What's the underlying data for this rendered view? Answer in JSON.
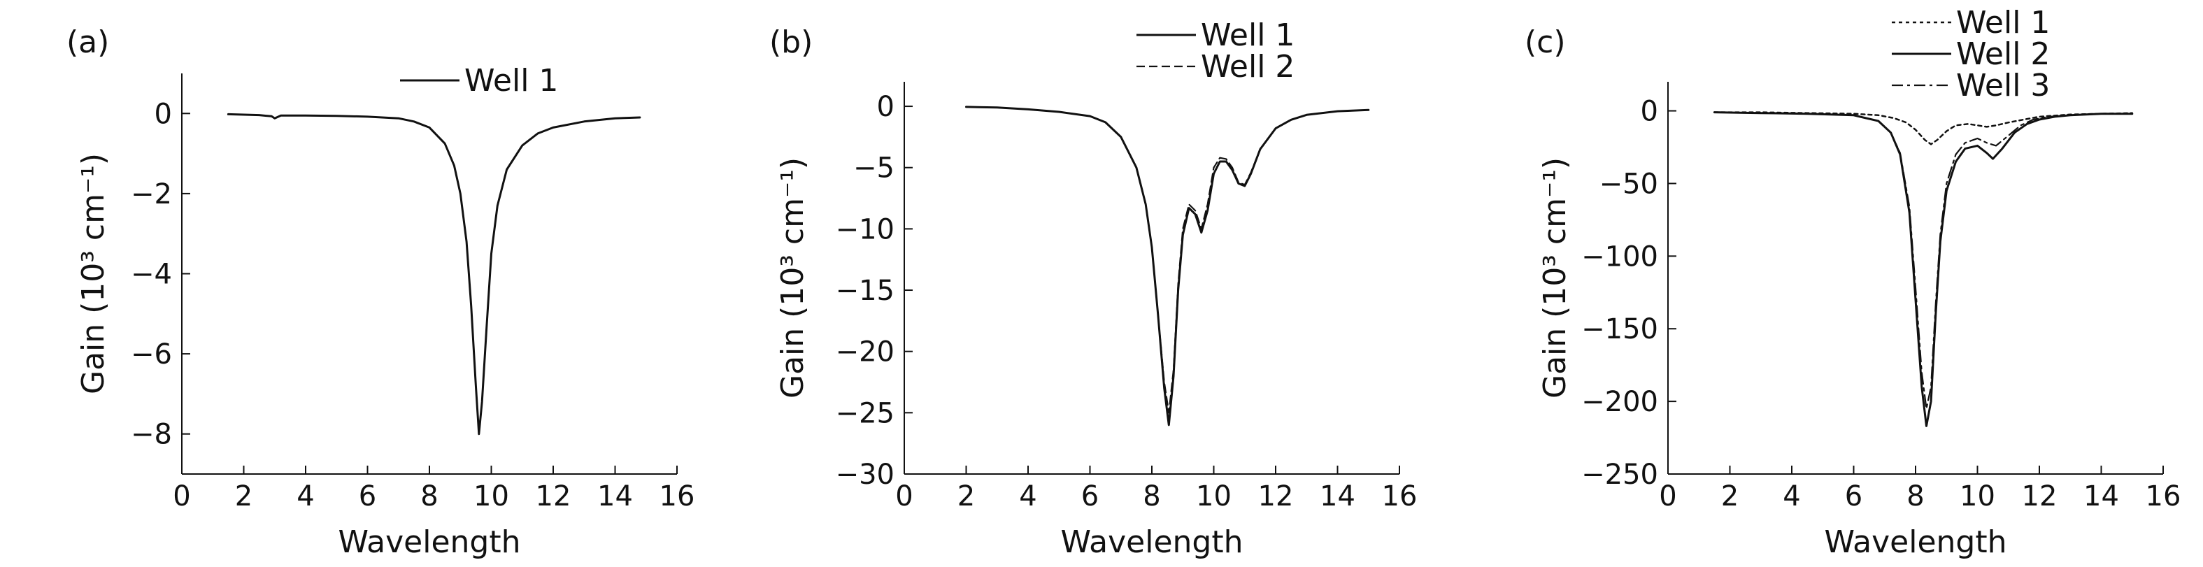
{
  "chart_data": [
    {
      "type": "line",
      "panel_label": "(a)",
      "xlabel": "Wavelength",
      "ylabel": "Gain (10³ cm⁻¹)",
      "xlim": [
        0,
        16
      ],
      "ylim": [
        -9,
        1
      ],
      "xticks": [
        0,
        2,
        4,
        6,
        8,
        10,
        12,
        14,
        16
      ],
      "xtick_labels": [
        "0",
        "2",
        "4",
        "6",
        "8",
        "10",
        "12",
        "14",
        "16"
      ],
      "yticks": [
        0,
        -2,
        -4,
        -6,
        -8
      ],
      "ytick_labels": [
        "0",
        "−2",
        "−4",
        "−6",
        "−8"
      ],
      "legend_position": "top-center",
      "series": [
        {
          "name": "Well 1",
          "dash": "solid",
          "x": [
            1.5,
            2.5,
            2.9,
            3.0,
            3.2,
            4.0,
            5.0,
            6.0,
            7.0,
            7.5,
            8.0,
            8.5,
            8.8,
            9.0,
            9.2,
            9.35,
            9.5,
            9.6,
            9.7,
            9.85,
            10.0,
            10.2,
            10.5,
            11.0,
            11.5,
            12.0,
            13.0,
            14.0,
            14.8
          ],
          "y": [
            -0.02,
            -0.04,
            -0.07,
            -0.12,
            -0.05,
            -0.05,
            -0.06,
            -0.08,
            -0.12,
            -0.2,
            -0.35,
            -0.75,
            -1.3,
            -2.0,
            -3.2,
            -4.8,
            -6.8,
            -8.0,
            -7.2,
            -5.3,
            -3.5,
            -2.3,
            -1.4,
            -0.8,
            -0.5,
            -0.35,
            -0.2,
            -0.12,
            -0.1
          ]
        }
      ]
    },
    {
      "type": "line",
      "panel_label": "(b)",
      "xlabel": "Wavelength",
      "ylabel": "Gain (10³ cm⁻¹)",
      "xlim": [
        0,
        16
      ],
      "ylim": [
        -30,
        2
      ],
      "xticks": [
        0,
        2,
        4,
        6,
        8,
        10,
        12,
        14,
        16
      ],
      "xtick_labels": [
        "0",
        "2",
        "4",
        "6",
        "8",
        "10",
        "12",
        "14",
        "16"
      ],
      "yticks": [
        0,
        -5,
        -10,
        -15,
        -20,
        -25,
        -30
      ],
      "ytick_labels": [
        "0",
        "−5",
        "−10",
        "−15",
        "−20",
        "−25",
        "−30"
      ],
      "legend_position": "top-center",
      "series": [
        {
          "name": "Well 1",
          "dash": "solid",
          "x": [
            2.0,
            3.0,
            4.0,
            5.0,
            6.0,
            6.5,
            7.0,
            7.5,
            7.8,
            8.0,
            8.2,
            8.4,
            8.55,
            8.7,
            8.85,
            9.0,
            9.2,
            9.4,
            9.6,
            9.8,
            10.0,
            10.2,
            10.4,
            10.6,
            10.8,
            11.0,
            11.2,
            11.5,
            12.0,
            12.5,
            13.0,
            14.0,
            15.0
          ],
          "y": [
            -0.05,
            -0.1,
            -0.25,
            -0.45,
            -0.8,
            -1.3,
            -2.5,
            -5.0,
            -8.0,
            -11.5,
            -17.0,
            -23.0,
            -26.0,
            -22.0,
            -15.0,
            -10.5,
            -8.3,
            -8.8,
            -10.3,
            -8.5,
            -5.5,
            -4.5,
            -4.5,
            -5.2,
            -6.3,
            -6.5,
            -5.5,
            -3.5,
            -1.8,
            -1.1,
            -0.7,
            -0.4,
            -0.3
          ]
        },
        {
          "name": "Well 2",
          "dash": "dashed",
          "x": [
            2.0,
            3.0,
            4.0,
            5.0,
            6.0,
            6.5,
            7.0,
            7.5,
            7.8,
            8.0,
            8.2,
            8.4,
            8.55,
            8.7,
            8.85,
            9.0,
            9.2,
            9.4,
            9.6,
            9.8,
            10.0,
            10.2,
            10.4,
            10.6,
            10.8,
            11.0,
            11.2,
            11.5,
            12.0,
            12.5,
            13.0,
            14.0,
            15.0
          ],
          "y": [
            -0.05,
            -0.1,
            -0.25,
            -0.45,
            -0.8,
            -1.3,
            -2.5,
            -5.0,
            -8.0,
            -11.5,
            -17.0,
            -22.5,
            -25.0,
            -21.5,
            -14.5,
            -10.0,
            -8.0,
            -8.5,
            -10.0,
            -8.0,
            -5.0,
            -4.2,
            -4.3,
            -5.0,
            -6.2,
            -6.4,
            -5.4,
            -3.5,
            -1.8,
            -1.1,
            -0.7,
            -0.4,
            -0.3
          ]
        }
      ]
    },
    {
      "type": "line",
      "panel_label": "(c)",
      "xlabel": "Wavelength",
      "ylabel": "Gain (10³ cm⁻¹)",
      "xlim": [
        0,
        16
      ],
      "ylim": [
        -250,
        20
      ],
      "xticks": [
        0,
        2,
        4,
        6,
        8,
        10,
        12,
        14,
        16
      ],
      "xtick_labels": [
        "0",
        "2",
        "4",
        "6",
        "8",
        "10",
        "12",
        "14",
        "16"
      ],
      "yticks": [
        0,
        -50,
        -100,
        -150,
        -200,
        -250
      ],
      "ytick_labels": [
        "0",
        "−50",
        "−100",
        "−150",
        "−200",
        "−250"
      ],
      "legend_position": "top-center",
      "series": [
        {
          "name": "Well 1",
          "dash": "dotted",
          "x": [
            1.5,
            3.0,
            4.5,
            6.0,
            6.8,
            7.3,
            7.7,
            8.0,
            8.3,
            8.5,
            8.7,
            9.0,
            9.3,
            9.7,
            10.0,
            10.3,
            10.6,
            11.0,
            11.5,
            12.0,
            13.0,
            14.0,
            15.0
          ],
          "y": [
            -1,
            -1,
            -1.5,
            -2,
            -3,
            -5,
            -8,
            -13,
            -20,
            -23,
            -20,
            -14,
            -10,
            -9,
            -10,
            -11,
            -10,
            -8,
            -6,
            -4,
            -2.5,
            -2,
            -1.5
          ]
        },
        {
          "name": "Well 2",
          "dash": "solid",
          "x": [
            1.5,
            3.0,
            4.5,
            6.0,
            6.8,
            7.2,
            7.5,
            7.8,
            8.0,
            8.2,
            8.35,
            8.5,
            8.65,
            8.8,
            9.0,
            9.3,
            9.6,
            10.0,
            10.3,
            10.5,
            10.8,
            11.2,
            11.6,
            12.0,
            12.5,
            13.0,
            14.0,
            15.0
          ],
          "y": [
            -1,
            -1.5,
            -2,
            -3,
            -7,
            -15,
            -30,
            -70,
            -130,
            -190,
            -217,
            -200,
            -140,
            -90,
            -55,
            -35,
            -26,
            -24,
            -29,
            -33,
            -26,
            -15,
            -9,
            -6,
            -4,
            -3,
            -2,
            -2
          ]
        },
        {
          "name": "Well 3",
          "dash": "dashdot",
          "x": [
            1.5,
            3.0,
            4.5,
            6.0,
            6.8,
            7.2,
            7.5,
            7.8,
            8.0,
            8.2,
            8.35,
            8.5,
            8.65,
            8.8,
            9.0,
            9.3,
            9.6,
            10.0,
            10.3,
            10.6,
            11.0,
            11.4,
            11.8,
            12.3,
            13.0,
            14.0,
            15.0
          ],
          "y": [
            -1,
            -1.5,
            -2,
            -3,
            -7,
            -15,
            -29,
            -66,
            -122,
            -180,
            -205,
            -190,
            -133,
            -85,
            -50,
            -30,
            -22,
            -19,
            -22,
            -24,
            -17,
            -10,
            -6,
            -4,
            -3,
            -2,
            -2
          ]
        }
      ]
    }
  ]
}
